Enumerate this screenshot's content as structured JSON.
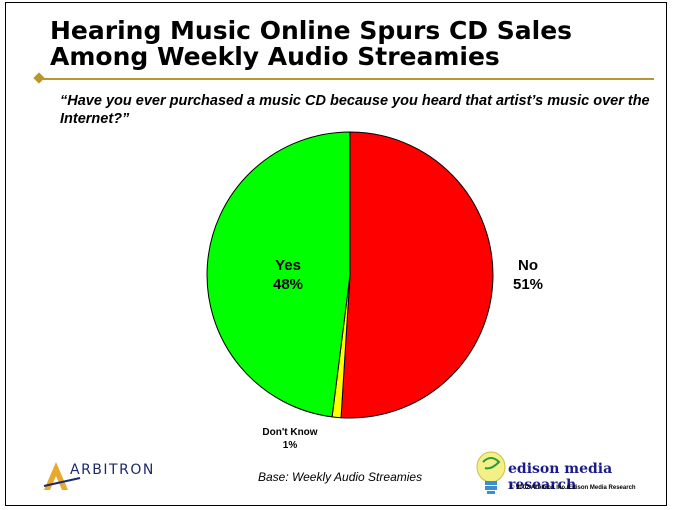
{
  "slide": {
    "title": "Hearing Music Online Spurs CD Sales Among Weekly Audio Streamies",
    "question": "“Have you ever purchased a music CD because you heard that artist’s music over the Internet?”",
    "footnote": "Base: Weekly Audio Streamies",
    "arbitron_logo_text": "ARBITRON",
    "edison_logo_text": "edison media research",
    "copyright": "© 2002 Arbitron Inc./Edison Media Research"
  },
  "chart_data": {
    "type": "pie",
    "title": "Hearing Music Online Spurs CD Sales Among Weekly Audio Streamies",
    "categories": [
      "No",
      "Don't Know",
      "Yes"
    ],
    "values": [
      51,
      1,
      48
    ],
    "value_labels": [
      "51%",
      "1%",
      "48%"
    ],
    "colors": [
      "#ff0000",
      "#ffff00",
      "#00ff00"
    ],
    "start_angle": "top (12 o'clock), clockwise",
    "legend": "none (direct labels)"
  }
}
